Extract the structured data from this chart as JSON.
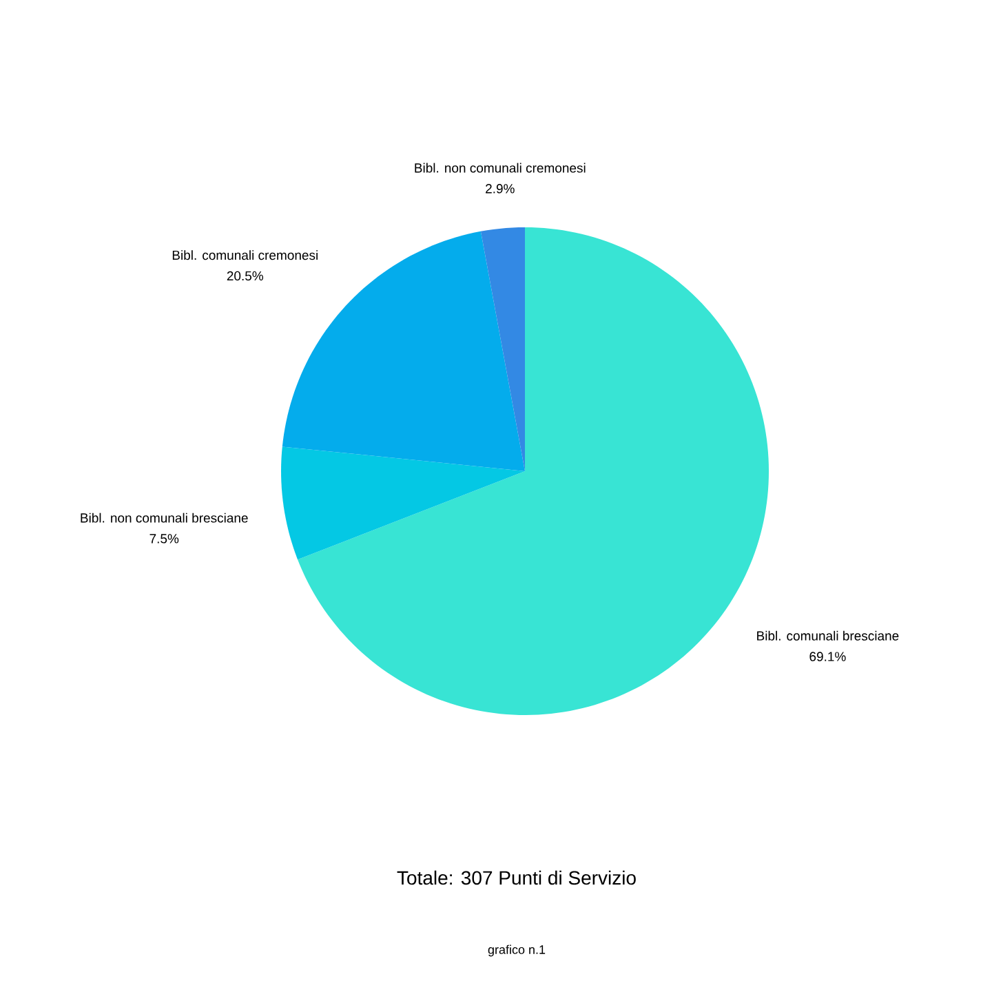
{
  "chart_data": {
    "type": "pie",
    "title": "Totale: 307 Punti di Servizio",
    "annotations": [
      "grafico n.1"
    ],
    "categories": [
      "Bibl. comunali bresciane",
      "Bibl. non comunali bresciane",
      "Bibl. comunali cremonesi",
      "Bibl. non comunali cremonesi"
    ],
    "values": [
      69.1,
      7.5,
      20.5,
      2.9
    ],
    "value_labels": [
      "69.1%",
      "7.5%",
      "20.5%",
      "2.9%"
    ],
    "colors": [
      "#38e4d4",
      "#04c8e4",
      "#04acec",
      "#3389e4"
    ]
  }
}
